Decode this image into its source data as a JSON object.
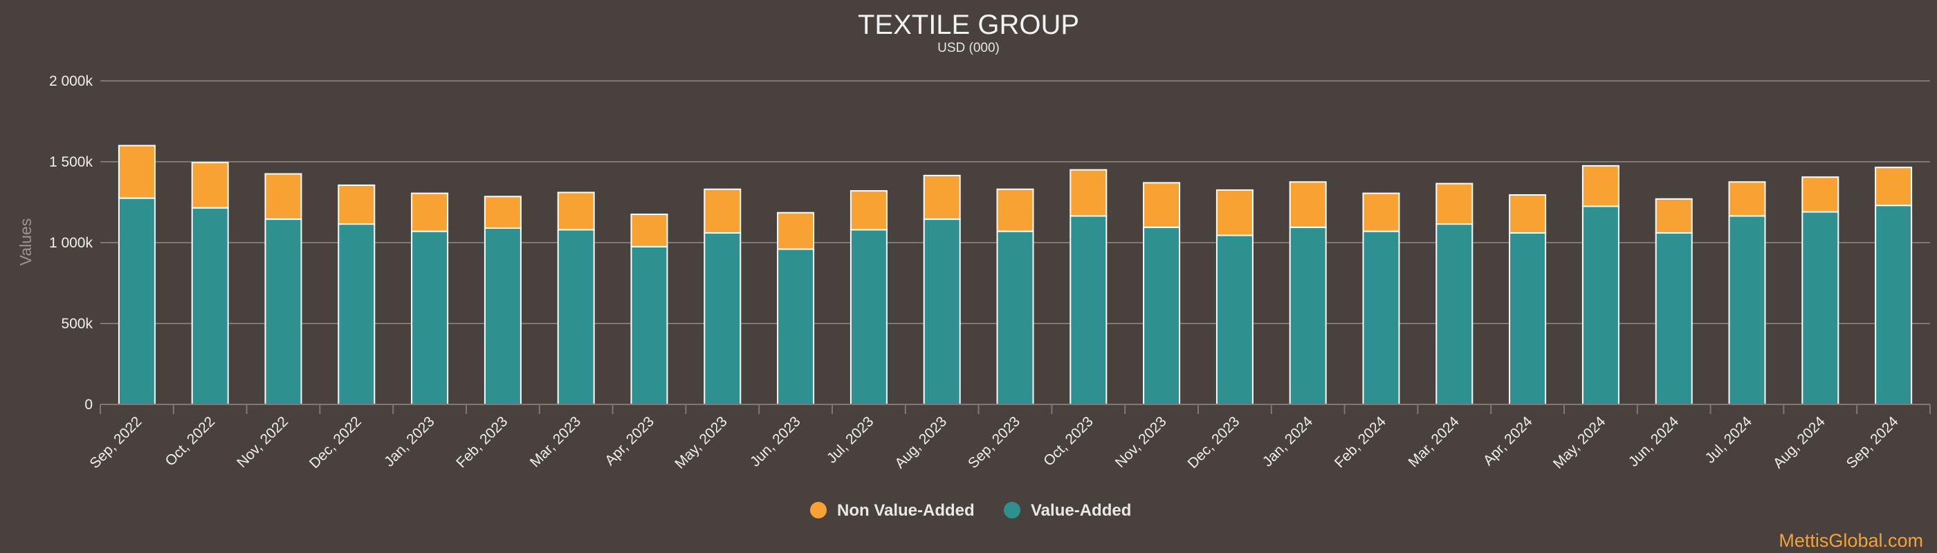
{
  "chart_data": {
    "type": "bar",
    "stacked": true,
    "title": "TEXTILE GROUP",
    "subtitle": "USD (000)",
    "ylabel": "Values",
    "xlabel": "",
    "ylim": [
      0,
      2000
    ],
    "yticks": [
      0,
      500,
      1000,
      1500,
      2000
    ],
    "ytick_labels": [
      "0",
      "500k",
      "1 000k",
      "1 500k",
      "2 000k"
    ],
    "grid": true,
    "legend_position": "bottom-center",
    "categories": [
      "Sep, 2022",
      "Oct, 2022",
      "Nov, 2022",
      "Dec, 2022",
      "Jan, 2023",
      "Feb, 2023",
      "Mar, 2023",
      "Apr, 2023",
      "May, 2023",
      "Jun, 2023",
      "Jul, 2023",
      "Aug, 2023",
      "Sep, 2023",
      "Oct, 2023",
      "Nov, 2023",
      "Dec, 2023",
      "Jan, 2024",
      "Feb, 2024",
      "Mar, 2024",
      "Apr, 2024",
      "May, 2024",
      "Jun, 2024",
      "Jul, 2024",
      "Aug, 2024",
      "Sep, 2024"
    ],
    "series": [
      {
        "name": "Value-Added",
        "color": "#2e9190",
        "values": [
          1275,
          1215,
          1145,
          1115,
          1070,
          1090,
          1080,
          975,
          1060,
          960,
          1080,
          1145,
          1070,
          1165,
          1095,
          1045,
          1095,
          1070,
          1115,
          1060,
          1225,
          1060,
          1165,
          1190,
          1230
        ]
      },
      {
        "name": "Non Value-Added",
        "color": "#f7a233",
        "values": [
          325,
          280,
          280,
          240,
          235,
          195,
          230,
          200,
          270,
          225,
          240,
          270,
          260,
          285,
          275,
          280,
          280,
          235,
          250,
          235,
          250,
          210,
          210,
          215,
          235
        ]
      }
    ],
    "legend_order": [
      "Non Value-Added",
      "Value-Added"
    ]
  },
  "credit": "MettisGlobal.com",
  "colors": {
    "background": "#48413d",
    "grid": "#7d7873",
    "bar_stroke": "#ffffff"
  }
}
